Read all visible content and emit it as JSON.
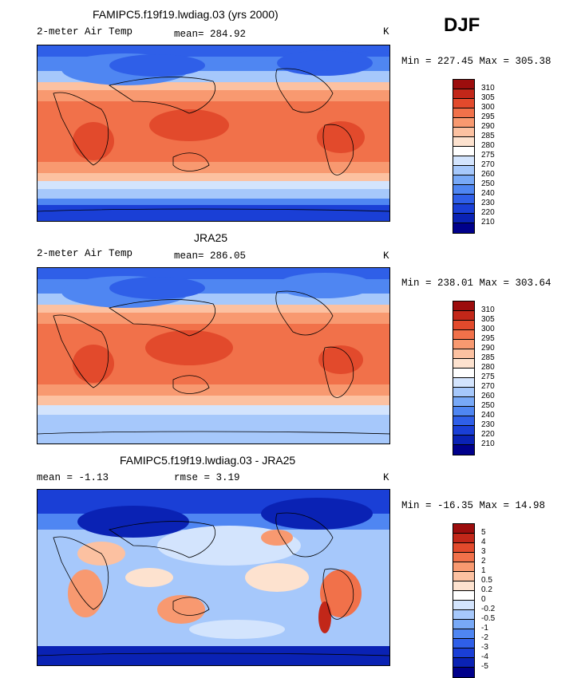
{
  "season": "DJF",
  "colors": {
    "temp": [
      "#00008b",
      "#0a22b4",
      "#1a3fd6",
      "#2f5fe8",
      "#4f86f2",
      "#78a9f7",
      "#a6c8fb",
      "#d3e4fd",
      "#fde2cf",
      "#fcc1a1",
      "#f89970",
      "#f1714a",
      "#e24a2c",
      "#c22719",
      "#9c0d0d"
    ],
    "diff": [
      "#00008b",
      "#0a22b4",
      "#1a3fd6",
      "#2f5fe8",
      "#4f86f2",
      "#78a9f7",
      "#a6c8fb",
      "#d3e4fd",
      "#fde2cf",
      "#fcc1a1",
      "#f89970",
      "#f1714a",
      "#e24a2c",
      "#c22719",
      "#9c0d0d"
    ]
  },
  "panels": [
    {
      "title": "FAMIPC5.f19f19.lwdiag.03 (yrs 2000)",
      "left_label": "2-meter Air Temp",
      "mean_text": "mean= 284.92",
      "units": "K",
      "minmax": "Min = 227.45 Max = 305.38",
      "levels": [
        "310",
        "305",
        "300",
        "295",
        "290",
        "285",
        "280",
        "275",
        "270",
        "260",
        "250",
        "240",
        "230",
        "220",
        "210"
      ]
    },
    {
      "title": "JRA25",
      "left_label": "2-meter Air Temp",
      "mean_text": "mean= 286.05",
      "units": "K",
      "minmax": "Min = 238.01 Max = 303.64",
      "levels": [
        "310",
        "305",
        "300",
        "295",
        "290",
        "285",
        "280",
        "275",
        "270",
        "260",
        "250",
        "240",
        "230",
        "220",
        "210"
      ]
    },
    {
      "title": "FAMIPC5.f19f19.lwdiag.03 - JRA25",
      "left_label": "mean =  -1.13",
      "mean_text": "rmse =   3.19",
      "units": "K",
      "minmax": "Min = -16.35 Max =  14.98",
      "levels": [
        "5",
        "4",
        "3",
        "2",
        "1",
        "0.5",
        "0.2",
        "0",
        "-0.2",
        "-0.5",
        "-1",
        "-2",
        "-3",
        "-4",
        "-5"
      ]
    }
  ]
}
